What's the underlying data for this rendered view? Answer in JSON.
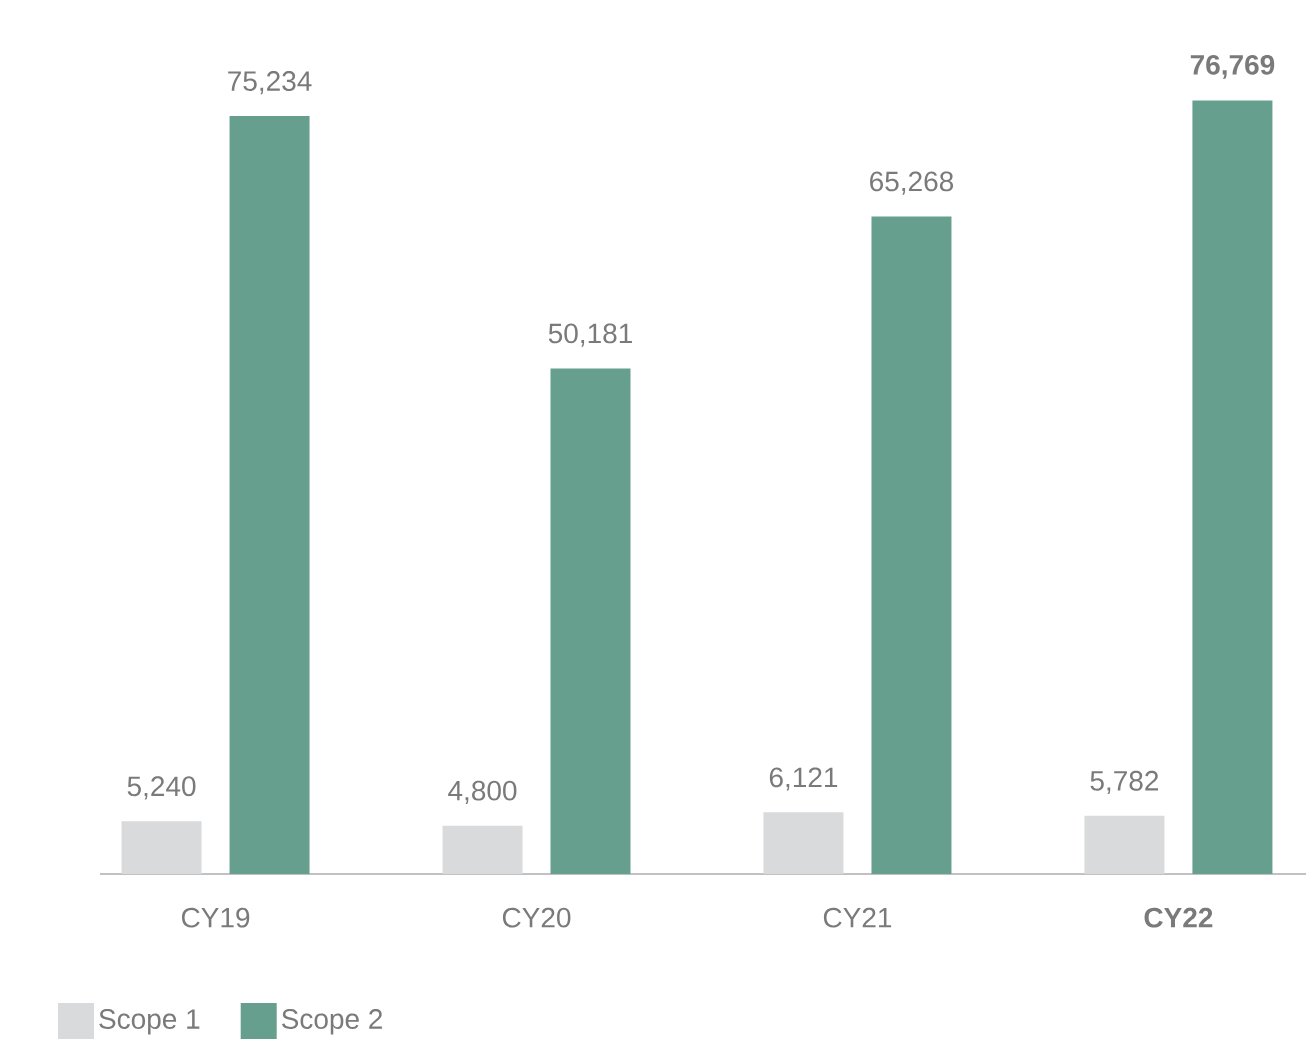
{
  "chart_data": {
    "type": "bar",
    "categories": [
      "CY19",
      "CY20",
      "CY21",
      "CY22"
    ],
    "series": [
      {
        "name": "Scope 1",
        "color": "#d9dadb",
        "values": [
          5240,
          4800,
          6121,
          5782
        ],
        "value_labels": [
          "5,240",
          "4,800",
          "6,121",
          "5,782"
        ]
      },
      {
        "name": "Scope 2",
        "color": "#679f8f",
        "values": [
          75234,
          50181,
          65268,
          76769
        ],
        "value_labels": [
          "75,234",
          "50,181",
          "65,268",
          "76,769"
        ]
      }
    ],
    "legend": "bottom left"
  }
}
